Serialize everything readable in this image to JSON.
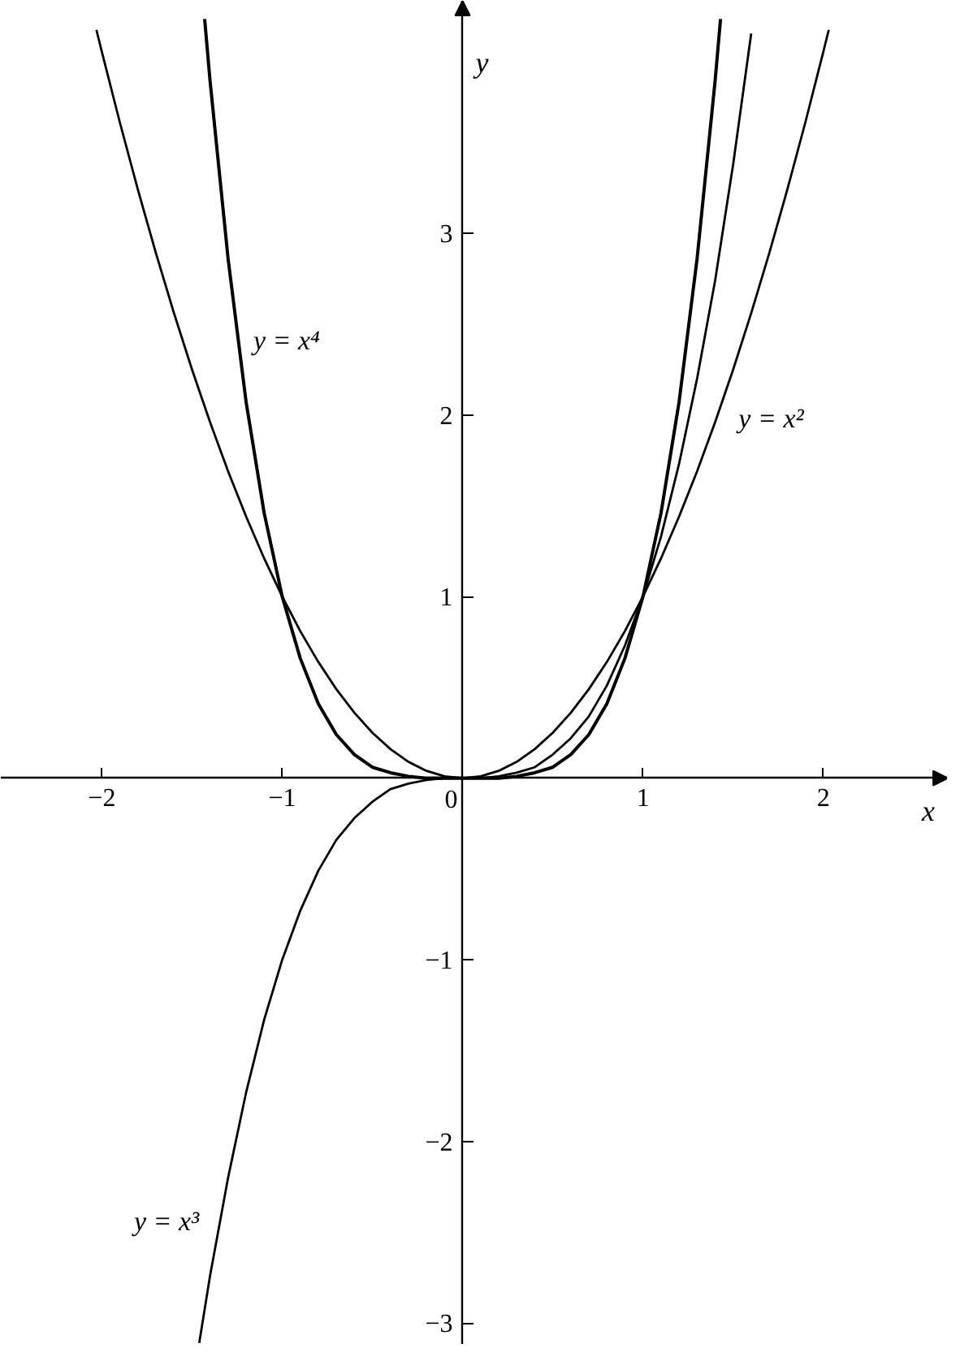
{
  "chart_data": {
    "type": "line",
    "xlabel": "x",
    "ylabel": "y",
    "xlim": [
      -2.56,
      2.69
    ],
    "ylim": [
      -3.12,
      4.28
    ],
    "xticks": [
      {
        "value": -2,
        "label": "−2"
      },
      {
        "value": -1,
        "label": "−1"
      },
      0,
      1,
      2
    ],
    "yticks": [
      {
        "value": -3,
        "label": "−3"
      },
      {
        "value": -2,
        "label": "−2"
      },
      {
        "value": -1,
        "label": "−1"
      },
      1,
      2,
      3
    ],
    "series": [
      {
        "name": "y = x²",
        "color": "#000000",
        "x": [
          -2.03,
          -2.0,
          -1.9,
          -1.8,
          -1.7,
          -1.6,
          -1.5,
          -1.4,
          -1.3,
          -1.2,
          -1.1,
          -1.0,
          -0.9,
          -0.8,
          -0.7,
          -0.6,
          -0.5,
          -0.4,
          -0.3,
          -0.2,
          -0.1,
          0,
          0.1,
          0.2,
          0.3,
          0.4,
          0.5,
          0.6,
          0.7,
          0.8,
          0.9,
          1.0,
          1.1,
          1.2,
          1.3,
          1.4,
          1.5,
          1.6,
          1.7,
          1.8,
          1.9,
          2.0,
          2.03
        ],
        "values": [
          4.12,
          4.0,
          3.61,
          3.24,
          2.89,
          2.56,
          2.25,
          1.96,
          1.69,
          1.44,
          1.21,
          1.0,
          0.81,
          0.64,
          0.49,
          0.36,
          0.25,
          0.16,
          0.09,
          0.04,
          0.01,
          0,
          0.01,
          0.04,
          0.09,
          0.16,
          0.25,
          0.36,
          0.49,
          0.64,
          0.81,
          1.0,
          1.21,
          1.44,
          1.69,
          1.96,
          2.25,
          2.56,
          2.89,
          3.24,
          3.61,
          4.0,
          4.12
        ]
      },
      {
        "name": "y = x³",
        "color": "#000000",
        "x": [
          -1.46,
          -1.4,
          -1.3,
          -1.2,
          -1.1,
          -1.0,
          -0.9,
          -0.8,
          -0.7,
          -0.6,
          -0.5,
          -0.4,
          -0.3,
          -0.2,
          -0.1,
          0,
          0.1,
          0.2,
          0.3,
          0.4,
          0.5,
          0.6,
          0.7,
          0.8,
          0.9,
          1.0,
          1.1,
          1.2,
          1.3,
          1.4,
          1.5,
          1.6
        ],
        "values": [
          -3.11,
          -2.74,
          -2.2,
          -1.73,
          -1.33,
          -1.0,
          -0.73,
          -0.51,
          -0.34,
          -0.22,
          -0.13,
          -0.06,
          -0.03,
          -0.01,
          0,
          0,
          0,
          0.01,
          0.03,
          0.06,
          0.13,
          0.22,
          0.34,
          0.51,
          0.73,
          1.0,
          1.33,
          1.73,
          2.2,
          2.74,
          3.38,
          4.1
        ]
      },
      {
        "name": "y = x⁴",
        "color": "#000000",
        "x": [
          -1.43,
          -1.4,
          -1.3,
          -1.2,
          -1.1,
          -1.0,
          -0.9,
          -0.8,
          -0.7,
          -0.6,
          -0.5,
          -0.4,
          -0.3,
          -0.2,
          -0.1,
          0,
          0.1,
          0.2,
          0.3,
          0.4,
          0.5,
          0.6,
          0.7,
          0.8,
          0.9,
          1.0,
          1.1,
          1.2,
          1.3,
          1.4,
          1.43
        ],
        "values": [
          4.18,
          3.84,
          2.86,
          2.07,
          1.46,
          1.0,
          0.66,
          0.41,
          0.24,
          0.13,
          0.06,
          0.03,
          0.01,
          0,
          0,
          0,
          0,
          0,
          0.01,
          0.03,
          0.06,
          0.13,
          0.24,
          0.41,
          0.66,
          1.0,
          1.46,
          2.07,
          2.86,
          3.84,
          4.18
        ]
      }
    ]
  }
}
